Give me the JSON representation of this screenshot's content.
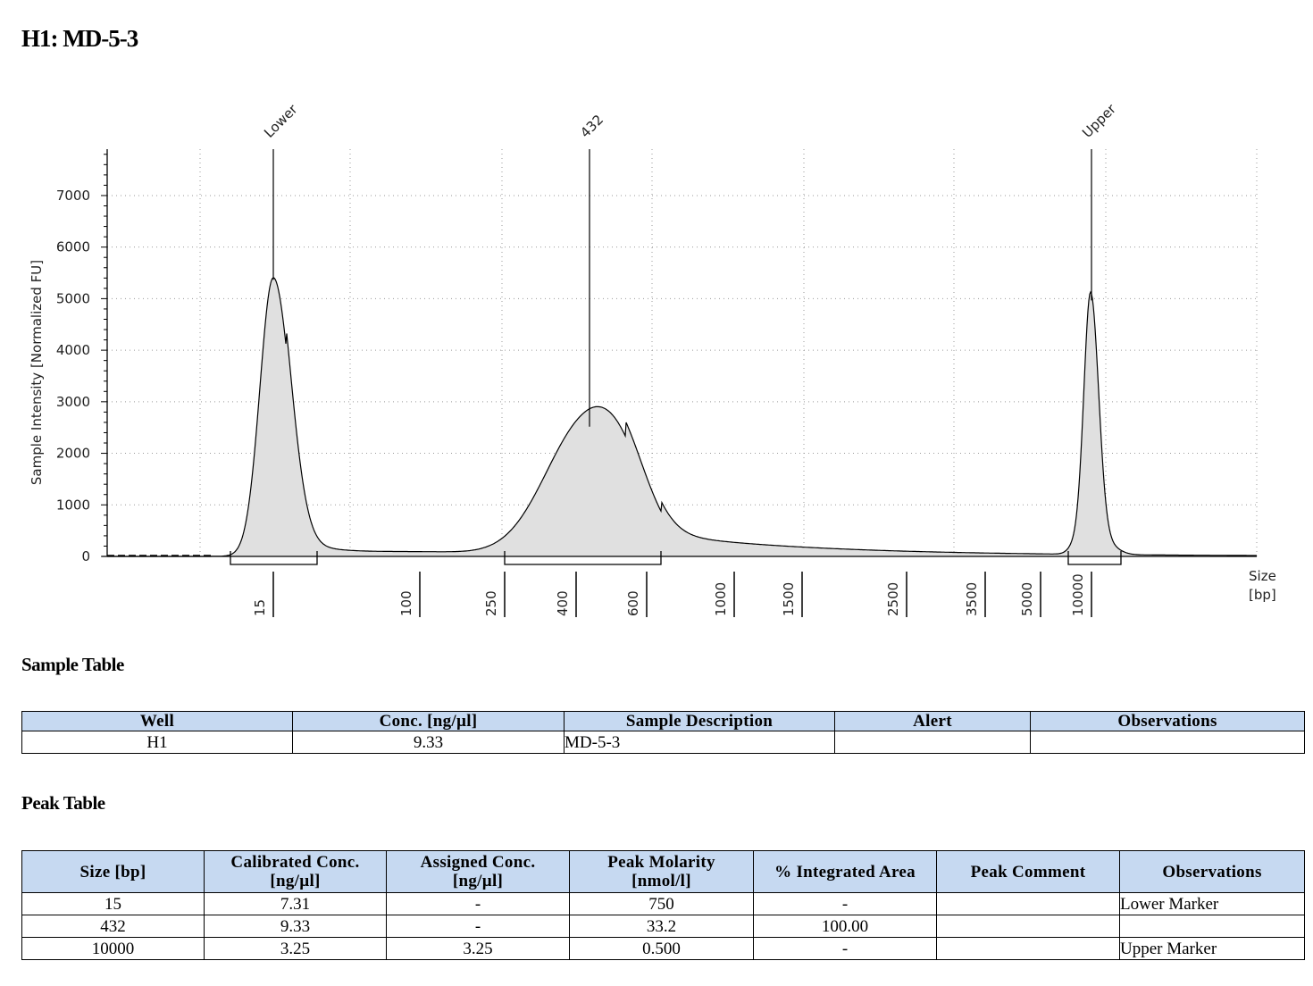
{
  "page_title": "H1: MD-5-3",
  "chart_data": {
    "type": "area",
    "ylabel": "Sample Intensity [Normalized FU]",
    "xlabel": "Size\n[bp]",
    "xlabel_lines": [
      "Size",
      "[bp]"
    ],
    "ylim": [
      0,
      7900
    ],
    "yticks": [
      0,
      1000,
      2000,
      3000,
      4000,
      5000,
      6000,
      7000
    ],
    "x_scale": "log (instrument size ladder)",
    "xticks": [
      "15",
      "100",
      "250",
      "400",
      "600",
      "1000",
      "1500",
      "2500",
      "3500",
      "5000",
      "10000"
    ],
    "peaks": [
      {
        "label": "Lower",
        "size_bp": 15,
        "height": 5400
      },
      {
        "label": "432",
        "size_bp": 432,
        "height": 2550
      },
      {
        "label": "Upper",
        "size_bp": 10000,
        "height": 5000
      }
    ],
    "region_brackets_bp": [
      [
        12,
        22
      ],
      [
        250,
        650
      ],
      [
        9000,
        11500
      ]
    ],
    "grid": true,
    "legend": "none",
    "colors": {
      "fill": "#e0e0e0",
      "line": "#000000",
      "grid": "#9a9a9a"
    }
  },
  "sample_table": {
    "title": "Sample Table",
    "headers": [
      "Well",
      "Conc. [ng/µl]",
      "Sample Description",
      "Alert",
      "Observations"
    ],
    "rows": [
      [
        "H1",
        "9.33",
        "MD-5-3",
        "",
        ""
      ]
    ]
  },
  "peak_table": {
    "title": "Peak Table",
    "headers": [
      [
        "Size [bp]"
      ],
      [
        "Calibrated Conc.",
        "[ng/µl]"
      ],
      [
        "Assigned Conc.",
        "[ng/µl]"
      ],
      [
        "Peak Molarity",
        "[nmol/l]"
      ],
      [
        "% Integrated Area"
      ],
      [
        "Peak Comment"
      ],
      [
        "Observations"
      ]
    ],
    "rows": [
      [
        "15",
        "7.31",
        "-",
        "750",
        "-",
        "",
        "Lower Marker"
      ],
      [
        "432",
        "9.33",
        "-",
        "33.2",
        "100.00",
        "",
        ""
      ],
      [
        "10000",
        "3.25",
        "3.25",
        "0.500",
        "-",
        "",
        "Upper Marker"
      ]
    ]
  },
  "colors": {
    "header_bg": "#c6d9f1"
  }
}
